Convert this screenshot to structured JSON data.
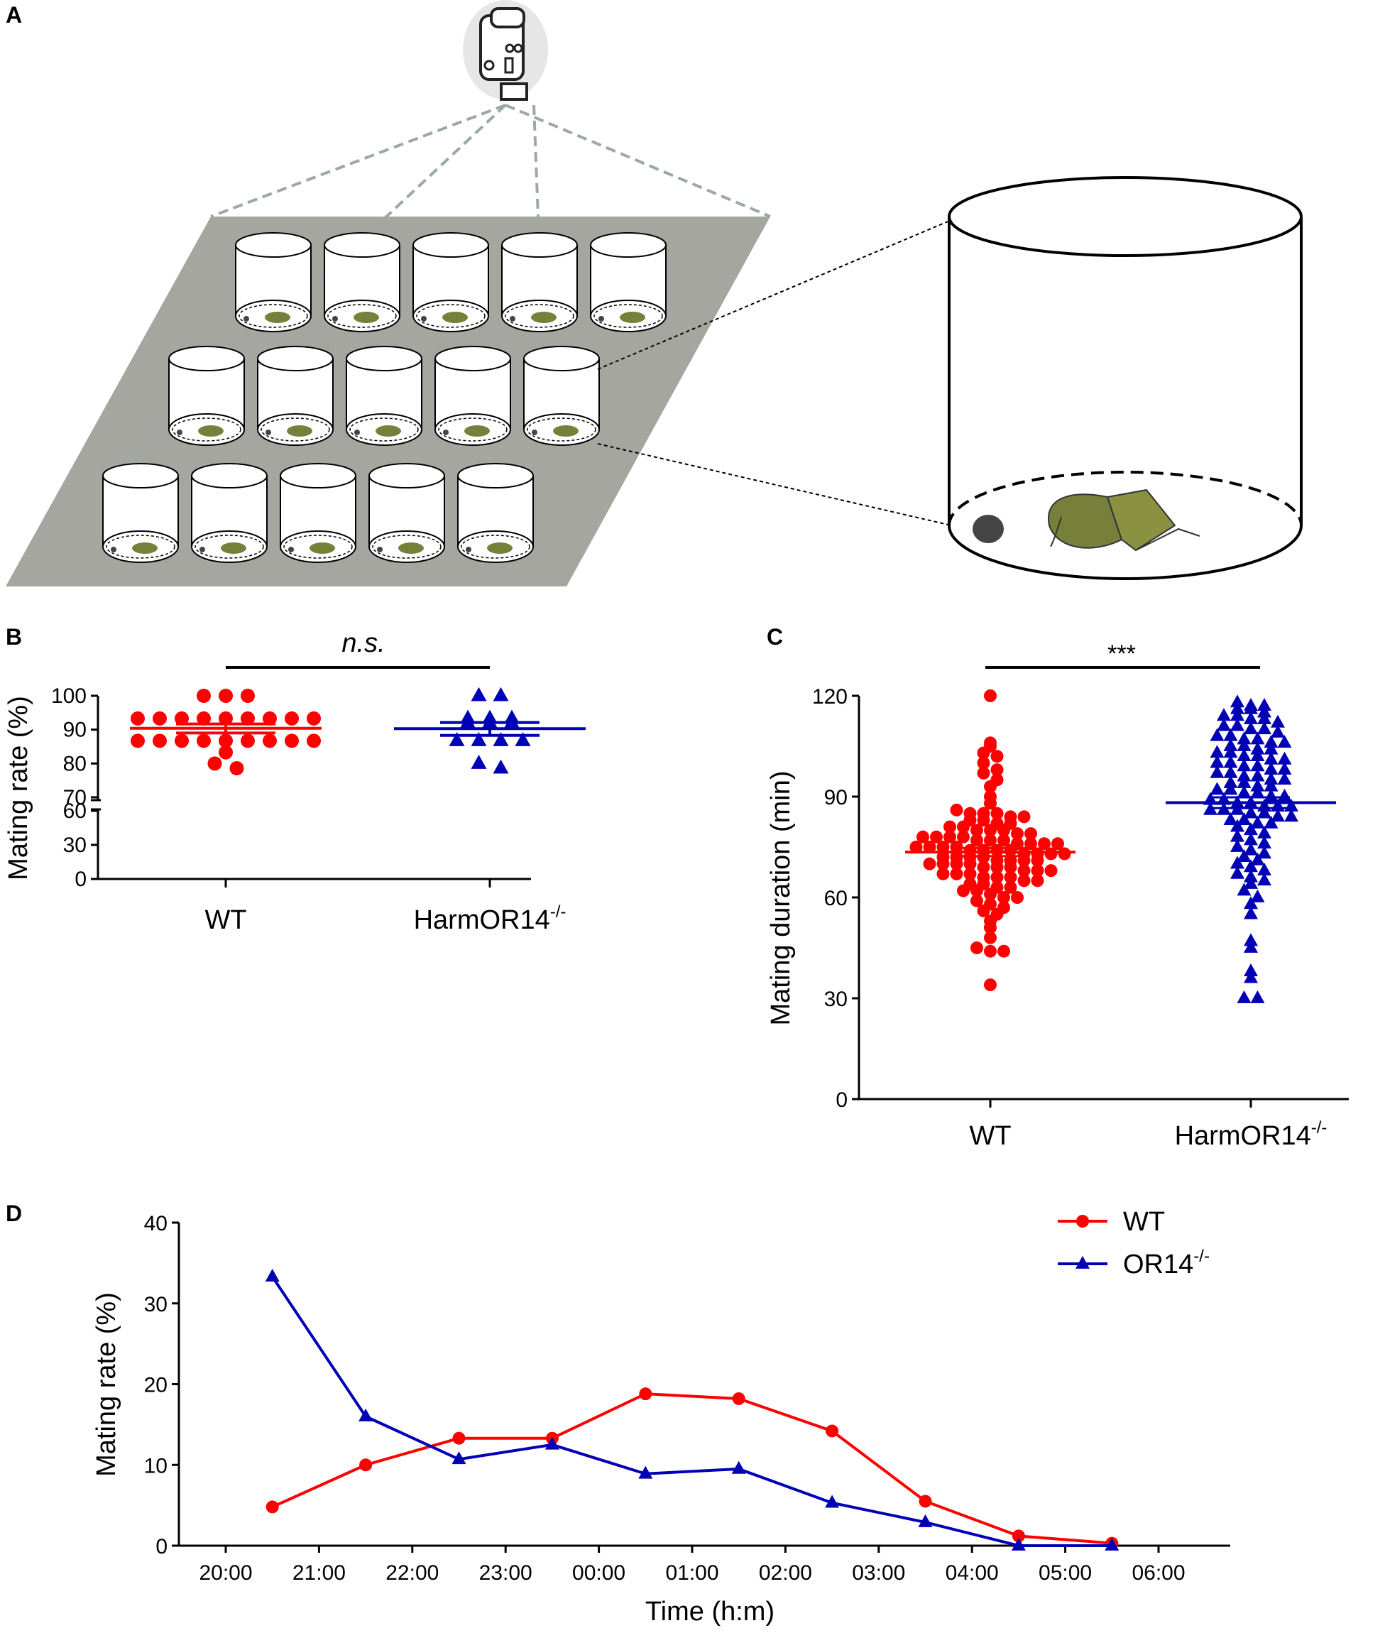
{
  "colors": {
    "wt": "#ff0000",
    "ko": "#0000b4",
    "platform": "#a6a6a0",
    "dashed": "#9aa8a6"
  },
  "panels": {
    "a": "A",
    "b": "B",
    "c": "C",
    "d": "D"
  },
  "chart_data": [
    {
      "panel": "B",
      "type": "scatter",
      "categories": [
        "WT",
        "HarmOR14"
      ],
      "category_superscript": [
        "",
        "-/-"
      ],
      "ylabel": "Mating rate (%)",
      "ylim_upper": [
        70,
        100
      ],
      "yticks_upper": [
        "70",
        "80",
        "90",
        "100"
      ],
      "ylim_lower": [
        0,
        60
      ],
      "yticks_lower": [
        "0",
        "30",
        "60"
      ],
      "significance": "n.s.",
      "series": [
        {
          "name": "WT",
          "marker": "circle",
          "values": [
            100,
            100,
            100,
            93.3,
            93.3,
            93.3,
            93.3,
            93.3,
            93.3,
            93.3,
            93.3,
            93.3,
            86.7,
            86.7,
            86.7,
            86.7,
            86.7,
            86.7,
            86.7,
            86.7,
            86.7,
            83.3,
            80,
            78.6
          ],
          "mean": 90.4,
          "sem_low": 89.0,
          "sem_high": 91.7
        },
        {
          "name": "HarmOR14-/-",
          "marker": "triangle",
          "values": [
            100,
            100,
            93.3,
            93.3,
            93.3,
            92,
            92,
            92,
            86.7,
            86.7,
            86.7,
            86.7,
            80,
            78.6
          ],
          "mean": 90.3,
          "sem_low": 88.3,
          "sem_high": 92.1
        }
      ]
    },
    {
      "panel": "C",
      "type": "scatter",
      "categories": [
        "WT",
        "HarmOR14"
      ],
      "category_superscript": [
        "",
        "-/-"
      ],
      "ylabel": "Mating duration (min)",
      "ylim": [
        0,
        120
      ],
      "yticks": [
        "0",
        "30",
        "60",
        "90",
        "120"
      ],
      "significance": "***",
      "series": [
        {
          "name": "WT",
          "marker": "circle",
          "mean": 73.5,
          "sem_low": 72.3,
          "sem_high": 74.7,
          "values": [
            120,
            106,
            105,
            103,
            102,
            100,
            98,
            97,
            95,
            93,
            90,
            88,
            86,
            85,
            85,
            85,
            84,
            84,
            83,
            83,
            82,
            82,
            81,
            81,
            80,
            80,
            80,
            79,
            79,
            78,
            78,
            78,
            78,
            77,
            77,
            77,
            76,
            76,
            76,
            76,
            75,
            75,
            75,
            75,
            74,
            74,
            74,
            74,
            73,
            73,
            73,
            73,
            72,
            72,
            72,
            72,
            71,
            71,
            71,
            71,
            70,
            70,
            70,
            70,
            69,
            69,
            69,
            68,
            68,
            68,
            67,
            67,
            67,
            66,
            66,
            66,
            65,
            65,
            64,
            64,
            63,
            63,
            62,
            62,
            61,
            60,
            60,
            59,
            58,
            57,
            56,
            55,
            53,
            51,
            48,
            45,
            44,
            44,
            34
          ]
        },
        {
          "name": "HarmOR14-/-",
          "marker": "triangle",
          "mean": 88.2,
          "sem_low": 86.6,
          "sem_high": 89.8,
          "values": [
            118,
            117,
            117,
            116,
            116,
            115,
            114,
            114,
            113,
            113,
            112,
            111,
            111,
            110,
            110,
            109,
            108,
            108,
            107,
            107,
            106,
            106,
            105,
            105,
            104,
            104,
            103,
            103,
            102,
            102,
            101,
            101,
            100,
            100,
            99,
            99,
            98,
            98,
            97,
            97,
            96,
            96,
            95,
            95,
            94,
            94,
            93,
            93,
            92,
            92,
            91,
            91,
            90,
            90,
            89,
            89,
            88,
            88,
            87,
            87,
            87,
            86,
            86,
            86,
            85,
            85,
            84,
            84,
            83,
            83,
            82,
            82,
            81,
            80,
            79,
            78,
            77,
            76,
            75,
            74,
            73,
            72,
            71,
            70,
            69,
            68,
            67,
            66,
            65,
            64,
            62,
            60,
            58,
            55,
            47,
            45,
            38,
            36,
            30,
            30
          ]
        }
      ]
    },
    {
      "panel": "D",
      "type": "line",
      "xlabel": "Time (h:m)",
      "ylabel": "Mating rate (%)",
      "ylim": [
        0,
        40
      ],
      "yticks": [
        "0",
        "10",
        "20",
        "30",
        "40"
      ],
      "xticks": [
        "20:00",
        "21:00",
        "22:00",
        "23:00",
        "00:00",
        "01:00",
        "02:00",
        "03:00",
        "04:00",
        "05:00",
        "06:00"
      ],
      "x": [
        0.5,
        1.5,
        2.5,
        3.5,
        4.5,
        5.5,
        6.5,
        7.5,
        8.5,
        9.5
      ],
      "series": [
        {
          "name": "WT",
          "sup": "",
          "marker": "circle",
          "values": [
            4.8,
            10.0,
            13.3,
            13.3,
            18.8,
            18.2,
            14.2,
            5.5,
            1.2,
            0.3
          ]
        },
        {
          "name": "OR14",
          "sup": "-/-",
          "marker": "triangle",
          "values": [
            33.3,
            16.0,
            10.7,
            12.5,
            8.9,
            9.5,
            5.3,
            2.9,
            0,
            0
          ]
        }
      ],
      "legend_position": "top-right"
    }
  ]
}
